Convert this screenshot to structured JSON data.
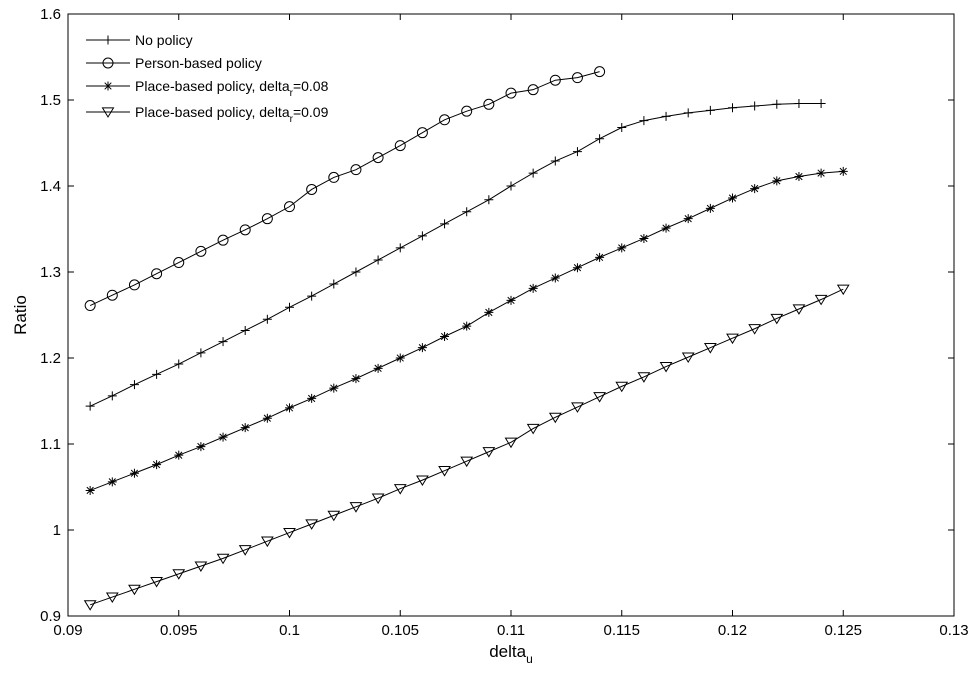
{
  "chart_data": {
    "type": "line",
    "xlabel": "delta",
    "xlabel_subscript": "u",
    "ylabel": "Ratio",
    "xlim": [
      0.09,
      0.13
    ],
    "ylim": [
      0.9,
      1.6
    ],
    "x_ticks": [
      0.09,
      0.095,
      0.1,
      0.105,
      0.11,
      0.115,
      0.12,
      0.125,
      0.13
    ],
    "x_tick_labels": [
      "0.09",
      "0.095",
      "0.1",
      "0.105",
      "0.11",
      "0.115",
      "0.12",
      "0.125",
      "0.13"
    ],
    "y_ticks": [
      0.9,
      1.0,
      1.1,
      1.2,
      1.3,
      1.4,
      1.5,
      1.6
    ],
    "y_tick_labels": [
      "0.9",
      "1",
      "1.1",
      "1.2",
      "1.3",
      "1.4",
      "1.5",
      "1.6"
    ],
    "grid": false,
    "legend_position": "top-left",
    "series": [
      {
        "name": "No policy",
        "marker": "plus",
        "x": [
          0.091,
          0.092,
          0.093,
          0.094,
          0.095,
          0.096,
          0.097,
          0.098,
          0.099,
          0.1,
          0.101,
          0.102,
          0.103,
          0.104,
          0.105,
          0.106,
          0.107,
          0.108,
          0.109,
          0.11,
          0.111,
          0.112,
          0.113,
          0.114,
          0.115,
          0.116,
          0.117,
          0.118,
          0.119,
          0.12,
          0.121,
          0.122,
          0.123,
          0.124
        ],
        "y": [
          1.144,
          1.156,
          1.169,
          1.181,
          1.193,
          1.206,
          1.219,
          1.232,
          1.245,
          1.259,
          1.272,
          1.286,
          1.3,
          1.314,
          1.328,
          1.342,
          1.356,
          1.37,
          1.384,
          1.4,
          1.415,
          1.429,
          1.44,
          1.455,
          1.468,
          1.476,
          1.481,
          1.485,
          1.488,
          1.491,
          1.493,
          1.495,
          1.496,
          1.496
        ]
      },
      {
        "name": "Person-based policy",
        "marker": "circle",
        "x": [
          0.091,
          0.092,
          0.093,
          0.094,
          0.095,
          0.096,
          0.097,
          0.098,
          0.099,
          0.1,
          0.101,
          0.102,
          0.103,
          0.104,
          0.105,
          0.106,
          0.107,
          0.108,
          0.109,
          0.11,
          0.111,
          0.112,
          0.113,
          0.114
        ],
        "y": [
          1.261,
          1.273,
          1.285,
          1.298,
          1.311,
          1.324,
          1.337,
          1.349,
          1.362,
          1.376,
          1.396,
          1.41,
          1.419,
          1.433,
          1.447,
          1.462,
          1.477,
          1.487,
          1.495,
          1.508,
          1.512,
          1.523,
          1.526,
          1.533
        ]
      },
      {
        "name": "Place-based policy, delta_r=0.08",
        "legend_label": {
          "prefix": "Place-based policy, delta",
          "subscript": "r",
          "suffix": "=0.08"
        },
        "marker": "star",
        "x": [
          0.091,
          0.092,
          0.093,
          0.094,
          0.095,
          0.096,
          0.097,
          0.098,
          0.099,
          0.1,
          0.101,
          0.102,
          0.103,
          0.104,
          0.105,
          0.106,
          0.107,
          0.108,
          0.109,
          0.11,
          0.111,
          0.112,
          0.113,
          0.114,
          0.115,
          0.116,
          0.117,
          0.118,
          0.119,
          0.12,
          0.121,
          0.122,
          0.123,
          0.124,
          0.125
        ],
        "y": [
          1.046,
          1.056,
          1.066,
          1.076,
          1.087,
          1.097,
          1.108,
          1.119,
          1.13,
          1.142,
          1.153,
          1.165,
          1.176,
          1.188,
          1.2,
          1.212,
          1.225,
          1.237,
          1.253,
          1.267,
          1.281,
          1.293,
          1.305,
          1.317,
          1.328,
          1.339,
          1.351,
          1.362,
          1.374,
          1.386,
          1.397,
          1.406,
          1.411,
          1.415,
          1.417
        ]
      },
      {
        "name": "Place-based policy, delta_r=0.09",
        "legend_label": {
          "prefix": "Place-based policy, delta",
          "subscript": "r",
          "suffix": "=0.09"
        },
        "marker": "triangle-down",
        "x": [
          0.091,
          0.092,
          0.093,
          0.094,
          0.095,
          0.096,
          0.097,
          0.098,
          0.099,
          0.1,
          0.101,
          0.102,
          0.103,
          0.104,
          0.105,
          0.106,
          0.107,
          0.108,
          0.109,
          0.11,
          0.111,
          0.112,
          0.113,
          0.114,
          0.115,
          0.116,
          0.117,
          0.118,
          0.119,
          0.12,
          0.121,
          0.122,
          0.123,
          0.124,
          0.125
        ],
        "y": [
          0.913,
          0.922,
          0.931,
          0.94,
          0.949,
          0.958,
          0.967,
          0.977,
          0.987,
          0.997,
          1.007,
          1.017,
          1.027,
          1.037,
          1.048,
          1.058,
          1.069,
          1.08,
          1.091,
          1.102,
          1.118,
          1.131,
          1.143,
          1.155,
          1.167,
          1.178,
          1.19,
          1.201,
          1.212,
          1.223,
          1.234,
          1.246,
          1.257,
          1.268,
          1.28
        ]
      }
    ]
  }
}
